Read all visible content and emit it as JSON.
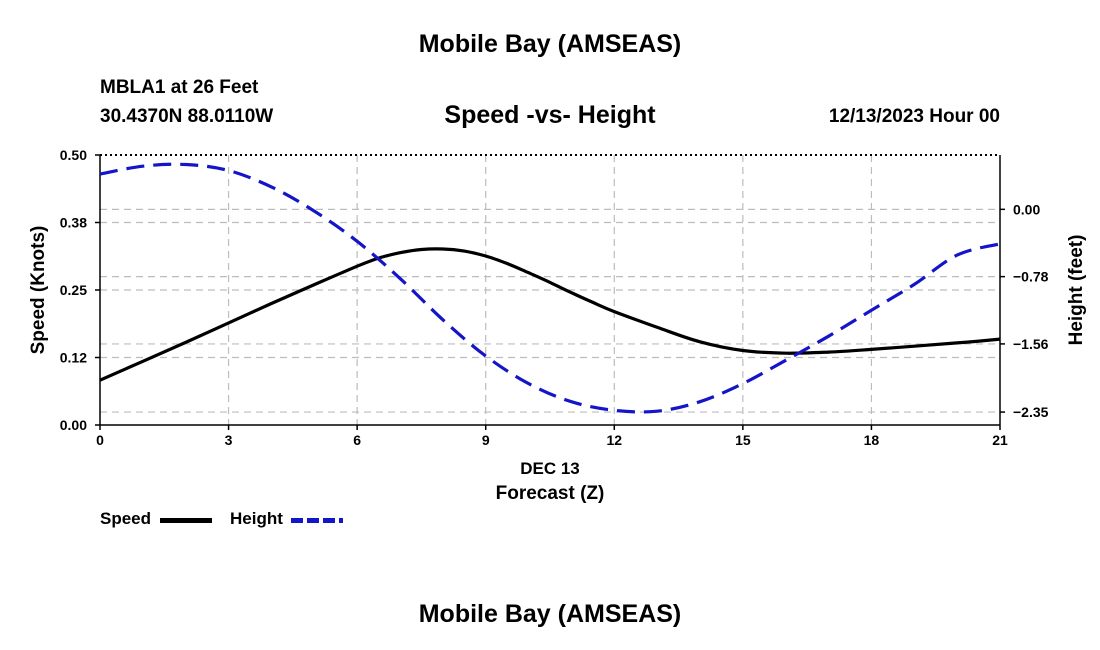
{
  "header": {
    "title": "Mobile Bay (AMSEAS)",
    "station": "MBLA1 at 26 Feet",
    "coords": "30.4370N  88.0110W",
    "chart_title": "Speed -vs- Height",
    "date": "12/13/2023 Hour 00"
  },
  "footer": {
    "title": "Mobile Bay (AMSEAS)"
  },
  "colors": {
    "speed": "#000000",
    "height": "#1414c8",
    "grid": "#bdbdbd"
  },
  "chart_data": {
    "type": "line",
    "title": "Speed -vs- Height",
    "xlabel": "Forecast (Z)",
    "xsublabel": "DEC 13",
    "ylabel_left": "Speed (Knots)",
    "ylabel_right": "Height (feet)",
    "xlim": [
      0,
      21
    ],
    "x_ticks": [
      0,
      3,
      6,
      9,
      12,
      15,
      18,
      21
    ],
    "ylim_left": [
      0,
      0.5
    ],
    "y_ticks_left": [
      0.0,
      0.125,
      0.25,
      0.375,
      0.5
    ],
    "y_tick_labels_left": [
      "0.00",
      "0.12",
      "0.25",
      "0.38",
      "0.50"
    ],
    "ylim_right": [
      -2.5,
      0.63
    ],
    "y_ticks_right": [
      -2.35,
      -1.56,
      -0.78,
      0.0
    ],
    "y_tick_labels_right": [
      "−2.35",
      "−1.56",
      "−0.78",
      "0.00"
    ],
    "grid": true,
    "legend_position": "bottom-left",
    "series": [
      {
        "name": "Speed",
        "axis": "left",
        "style": "solid",
        "x": [
          0,
          1,
          2,
          3,
          4,
          5,
          6,
          6.5,
          7,
          7.5,
          8,
          8.5,
          9,
          9.5,
          10,
          10.5,
          11,
          11.5,
          12,
          13,
          14,
          15,
          16,
          17,
          18,
          19,
          20,
          21
        ],
        "values": [
          0.083,
          0.118,
          0.153,
          0.189,
          0.225,
          0.26,
          0.294,
          0.309,
          0.319,
          0.325,
          0.326,
          0.322,
          0.313,
          0.299,
          0.282,
          0.264,
          0.245,
          0.227,
          0.21,
          0.181,
          0.154,
          0.138,
          0.133,
          0.135,
          0.14,
          0.146,
          0.152,
          0.159
        ]
      },
      {
        "name": "Height",
        "axis": "right",
        "style": "dashed",
        "x": [
          0,
          1,
          2,
          3,
          4,
          5,
          6,
          7,
          8,
          9,
          10,
          11,
          12,
          13,
          14,
          15,
          16,
          17,
          18,
          19,
          20,
          21
        ],
        "values": [
          0.41,
          0.5,
          0.52,
          0.45,
          0.26,
          -0.02,
          -0.37,
          -0.8,
          -1.28,
          -1.7,
          -2.02,
          -2.23,
          -2.33,
          -2.34,
          -2.23,
          -2.02,
          -1.75,
          -1.47,
          -1.17,
          -0.87,
          -0.53,
          -0.4
        ]
      }
    ]
  }
}
